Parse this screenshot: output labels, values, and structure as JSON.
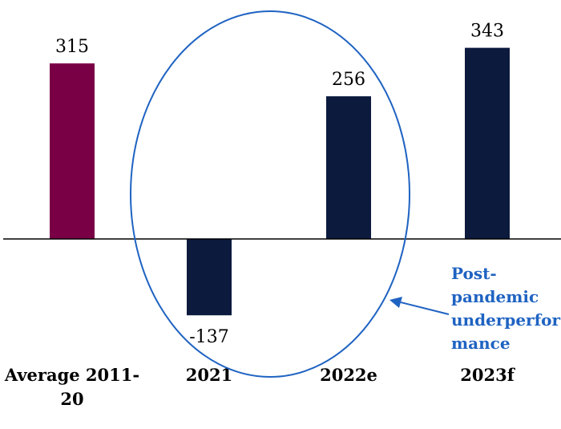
{
  "chart_data": {
    "type": "bar",
    "categories": [
      "Average 2011-20",
      "2021",
      "2022e",
      "2023f"
    ],
    "category_lines": [
      [
        "Average 2011-",
        "20"
      ],
      [
        "2021"
      ],
      [
        "2022e"
      ],
      [
        "2023f"
      ]
    ],
    "values": [
      315,
      -137,
      256,
      343
    ],
    "data_labels": [
      "315",
      "-137",
      "256",
      "343"
    ],
    "bar_colors": [
      "#7a0046",
      "#0c1a3e",
      "#0c1a3e",
      "#0c1a3e"
    ],
    "title": "",
    "xlabel": "",
    "ylabel": "",
    "grid": false,
    "annotation": {
      "lines": [
        "Post-",
        "pandemic",
        "underperfor",
        "mance"
      ],
      "text": "Post-pandemic underperformance",
      "color": "#1f63c2",
      "highlights": [
        "2021",
        "2022e"
      ]
    }
  }
}
